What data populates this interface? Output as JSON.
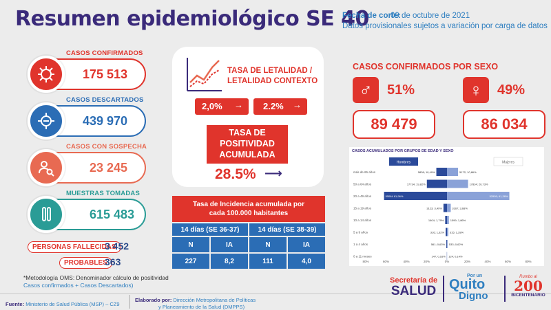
{
  "header": {
    "title": "Resumen epidemiológico SE 40",
    "cutoff_label": "Fecha de corte:",
    "cutoff_date": "09 de octubre de 2021",
    "note": "Datos provisionales sujetos a variación por carga de datos"
  },
  "kpis": [
    {
      "label": "CASOS CONFIRMADOS",
      "value": "175 513",
      "icon": "virus-icon",
      "color": "#e0342c"
    },
    {
      "label": "CASOS DESCARTADOS",
      "value": "439 970",
      "icon": "virus-minus-icon",
      "color": "#2b6db5"
    },
    {
      "label": "CASOS CON SOSPECHA",
      "value": "23 245",
      "icon": "search-person-icon",
      "color": "#e86a52"
    },
    {
      "label": "MUESTRAS TOMADAS",
      "value": "615 483",
      "icon": "test-tube-icon",
      "color": "#2a9c96"
    }
  ],
  "deaths": {
    "label": "PERSONAS FALLECIDAS",
    "value": "3 452"
  },
  "probables": {
    "label": "PROBABLES",
    "value": "363"
  },
  "footnote": {
    "line1": "*Metodología OMS: Denominador cálculo de positividad",
    "line2": "Casos confirmados + Casos Descartados)"
  },
  "lethality": {
    "title1": "TASA DE LETALIDAD /",
    "title2": "LETALIDAD CONTEXTO",
    "rate1": "2,0%",
    "rate2": "2.2%"
  },
  "positivity": {
    "title1": "TASA DE",
    "title2": "POSITIVIDAD",
    "title3": "ACUMULADA",
    "value": "28.5%"
  },
  "incidence": {
    "title1": "Tasa de Incidencia acumulada por",
    "title2": "cada 100.000 habitantes",
    "periods": [
      "14 días (SE 36-37)",
      "14 días (SE 38-39)"
    ],
    "cols": [
      "N",
      "IA",
      "N",
      "IA"
    ],
    "values": [
      "227",
      "8,2",
      "111",
      "4,0"
    ]
  },
  "sex": {
    "title": "CASOS CONFIRMADOS POR SEXO",
    "male_pct": "51%",
    "female_pct": "49%",
    "male_count": "89 479",
    "female_count": "86 034",
    "male_icon": "male-symbol-icon",
    "female_icon": "female-symbol-icon"
  },
  "pyramid": {
    "title": "CASOS ACUMULADOS POR GRUPOS DE EDAD Y SEXO",
    "legend_men": "Hombres",
    "legend_women": "Mujeres",
    "x_ticks": [
      "80%",
      "60%",
      "40%",
      "20%",
      "0%",
      "20%",
      "40%",
      "60%",
      "80%"
    ]
  },
  "chart_data": {
    "type": "bar",
    "title": "CASOS ACUMULADOS POR GRUPOS DE EDAD Y SEXO",
    "categories": [
      "más de 65 años",
      "50 a 64 años",
      "20 a 49 años",
      "15 a 19 años",
      "10 a 14 años",
      "5 a 9 años",
      "1 a 4 años",
      "0 a 11 meses"
    ],
    "series": [
      {
        "name": "Hombres",
        "values": [
          10.49,
          19.82,
          61.96,
          3.49,
          1.79,
          1.32,
          0.63,
          0.16
        ],
        "labels": [
          "5838; 10,49%",
          "17734; 19,82%",
          "55064\n61,96%",
          "3123; 3,49%",
          "1604; 1,79%",
          "316; 1,32%",
          "561; 0,63%",
          "147; 0,16%"
        ]
      },
      {
        "name": "Mujeres",
        "values": [
          10.86,
          20.73,
          61.38,
          3.68,
          1.86,
          1.28,
          0.62,
          0.14
        ],
        "labels": [
          "5172; 10,86%",
          "17834; 20,73%",
          "52905; 61,38%",
          "3167; 3,68%",
          "1599; 1,86%",
          "315; 1,28%",
          "533; 0,62%",
          "124; 0,14%"
        ]
      }
    ],
    "xlim": [
      -80,
      80
    ],
    "colors": {
      "Hombres": "#2b4a9a",
      "Mujeres": "#8aa2d8"
    }
  },
  "footer": {
    "source_label": "Fuente:",
    "source": "Ministerio de Salud Pública (MSP) – CZ9",
    "prepared_label": "Elaborado por:",
    "prepared1": "Dirección Metropolitana de Políticas",
    "prepared2": "y Planeamiento de la Salud (DMPPS)",
    "logo1_top": "Secretaría de",
    "logo1_bottom": "SALUD",
    "logo2_top": "Por un",
    "logo2_mid": "Quito",
    "logo2_bottom": "Digno",
    "logo3_top": "Rumbo al",
    "logo3_bottom": "BICENTENARIO"
  }
}
